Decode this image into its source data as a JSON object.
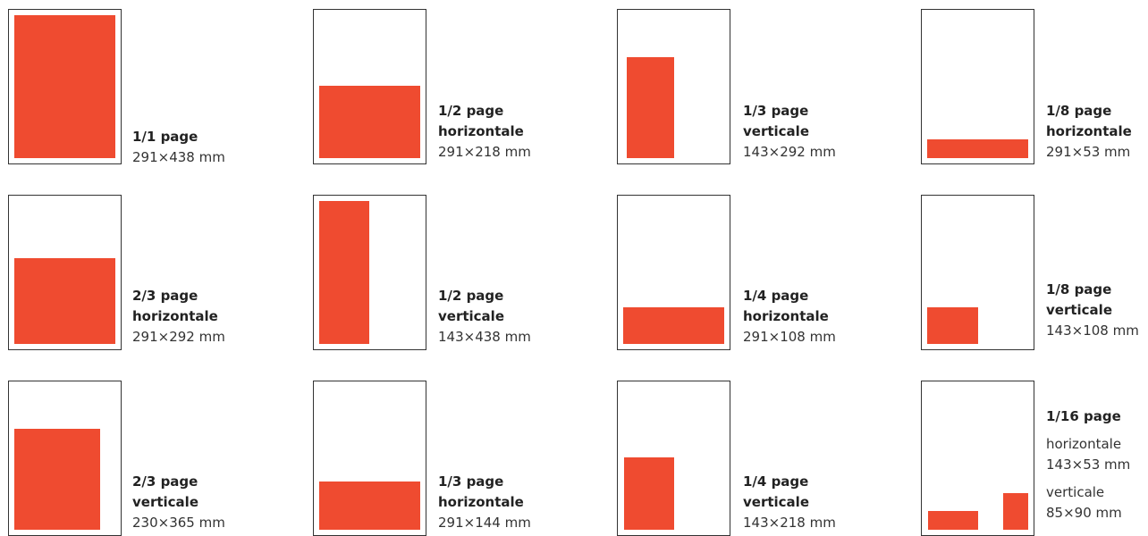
{
  "formats": [
    {
      "id": "full-page",
      "lines": [
        "1/1 page"
      ],
      "size": "291×438 mm"
    },
    {
      "id": "half-horizontal",
      "lines": [
        "1/2 page",
        "horizontale"
      ],
      "size": "291×218 mm"
    },
    {
      "id": "third-vertical",
      "lines": [
        "1/3 page",
        "verticale"
      ],
      "size": "143×292 mm"
    },
    {
      "id": "eighth-horizontal",
      "lines": [
        "1/8 page",
        "horizontale"
      ],
      "size": "291×53 mm"
    },
    {
      "id": "two-thirds-horizontal",
      "lines": [
        "2/3 page",
        "horizontale"
      ],
      "size": "291×292 mm"
    },
    {
      "id": "half-vertical",
      "lines": [
        "1/2 page",
        "verticale"
      ],
      "size": "143×438 mm"
    },
    {
      "id": "quarter-horizontal",
      "lines": [
        "1/4 page",
        "horizontale"
      ],
      "size": "291×108 mm"
    },
    {
      "id": "eighth-vertical",
      "lines": [
        "1/8 page",
        "verticale"
      ],
      "size": "143×108 mm"
    },
    {
      "id": "two-thirds-vertical",
      "lines": [
        "2/3 page",
        "verticale"
      ],
      "size": "230×365 mm"
    },
    {
      "id": "third-horizontal",
      "lines": [
        "1/3 page",
        "horizontale"
      ],
      "size": "291×144 mm"
    },
    {
      "id": "quarter-vertical",
      "lines": [
        "1/4 page",
        "verticale"
      ],
      "size": "143×218 mm"
    }
  ],
  "sixteenth": {
    "title": "1/16 page",
    "horizontal_label": "horizontale",
    "horizontal_size": "143×53 mm",
    "vertical_label": "verticale",
    "vertical_size": "85×90 mm"
  },
  "colors": {
    "ad_fill": "#ef4b30",
    "page_border": "#333333"
  }
}
